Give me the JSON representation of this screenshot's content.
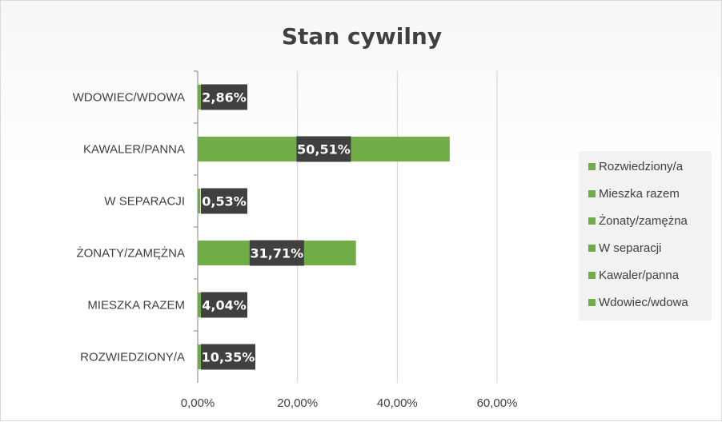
{
  "chart_data": {
    "type": "bar",
    "orientation": "horizontal",
    "title": "Stan cywilny",
    "categories": [
      "ROZWIEDZIONY/A",
      "MIESZKA RAZEM",
      "ŻONATY/ZAMĘŻNA",
      "W SEPARACJI",
      "KAWALER/PANNA",
      "WDOWIEC/WDOWA"
    ],
    "values": [
      10.35,
      4.04,
      31.71,
      0.53,
      50.51,
      2.86
    ],
    "data_labels": [
      "10,35%",
      "4,04%",
      "31,71%",
      "0,53%",
      "50,51%",
      "2,86%"
    ],
    "xlim": [
      0,
      60
    ],
    "x_ticks": [
      "0,00%",
      "20,00%",
      "40,00%",
      "60,00%"
    ],
    "grid": true,
    "bar_color": "#70ad47",
    "label_bg_color": "#404040",
    "legend": {
      "position": "right",
      "entries": [
        "Rozwiedziony/a",
        "Mieszka razem",
        "Żonaty/zamężna",
        "W separacji",
        "Kawaler/panna",
        "Wdowiec/wdowa"
      ]
    }
  }
}
